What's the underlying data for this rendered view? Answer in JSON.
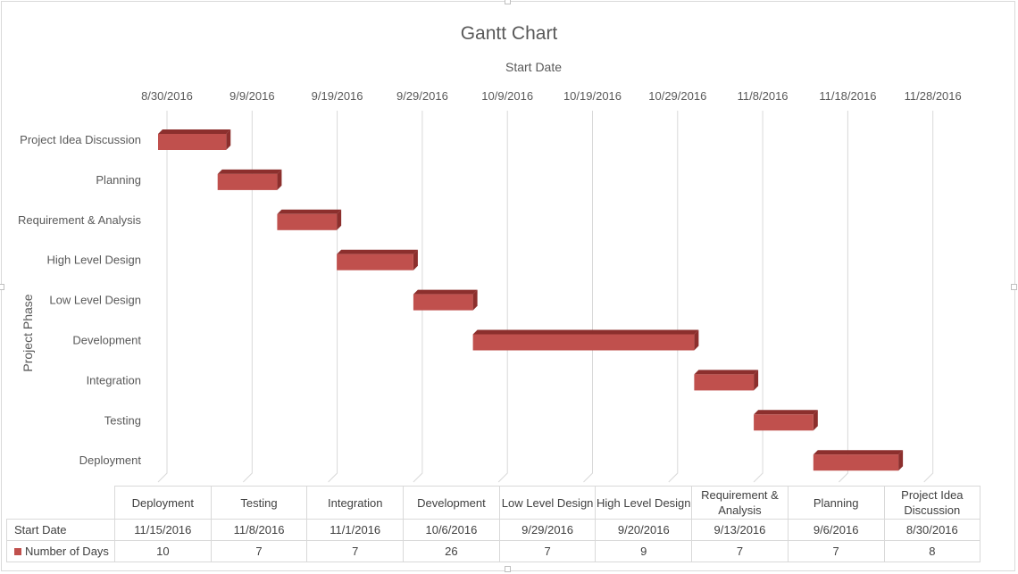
{
  "chart_data": {
    "type": "bar",
    "orientation": "horizontal",
    "stacked": true,
    "style": "3d-clustered-bar",
    "title": "Gantt Chart",
    "xlabel": "Start Date",
    "ylabel": "Project Phase",
    "xlim": [
      "8/30/2016",
      "11/28/2016"
    ],
    "x_ticks": [
      "8/30/2016",
      "9/9/2016",
      "9/19/2016",
      "9/29/2016",
      "10/9/2016",
      "10/19/2016",
      "10/29/2016",
      "11/8/2016",
      "11/18/2016",
      "11/28/2016"
    ],
    "categories": [
      "Project Idea Discussion",
      "Planning",
      "Requirement & Analysis",
      "High Level Design ",
      "Low Level Design",
      "Development",
      "Integration",
      "Testing",
      "Deployment"
    ],
    "start_dates": [
      "8/30/2016",
      "9/6/2016",
      "9/13/2016",
      "9/20/2016",
      "9/29/2016",
      "10/6/2016",
      "11/1/2016",
      "11/8/2016",
      "11/15/2016"
    ],
    "series": [
      {
        "name": "Start Date",
        "values": [
          "8/30/2016",
          "9/6/2016",
          "9/13/2016",
          "9/20/2016",
          "9/29/2016",
          "10/6/2016",
          "11/1/2016",
          "11/8/2016",
          "11/15/2016"
        ],
        "visible": false
      },
      {
        "name": "Number of Days",
        "values": [
          8,
          7,
          7,
          9,
          7,
          26,
          7,
          7,
          10
        ],
        "color": "#c0504d"
      }
    ],
    "grid": true,
    "legend": "data-table",
    "data_table": {
      "columns": [
        "Deployment",
        "Testing",
        "Integration",
        "Development",
        "Low Level Design",
        "High Level Design",
        "Requirement & Analysis",
        "Planning",
        "Project Idea Discussion"
      ],
      "rows": [
        {
          "label": "Start Date",
          "values": [
            "11/15/2016",
            "11/8/2016",
            "11/1/2016",
            "10/6/2016",
            "9/29/2016",
            "9/20/2016",
            "9/13/2016",
            "9/6/2016",
            "8/30/2016"
          ]
        },
        {
          "label": "Number of Days",
          "values": [
            "10",
            "7",
            "7",
            "26",
            "7",
            "9",
            "7",
            "7",
            "8"
          ]
        }
      ]
    }
  },
  "colors": {
    "bar_front": "#c0504d",
    "bar_top": "#d9574f",
    "bar_side": "#8c2f2d",
    "grid": "#d9d9d9",
    "text": "#595959"
  }
}
